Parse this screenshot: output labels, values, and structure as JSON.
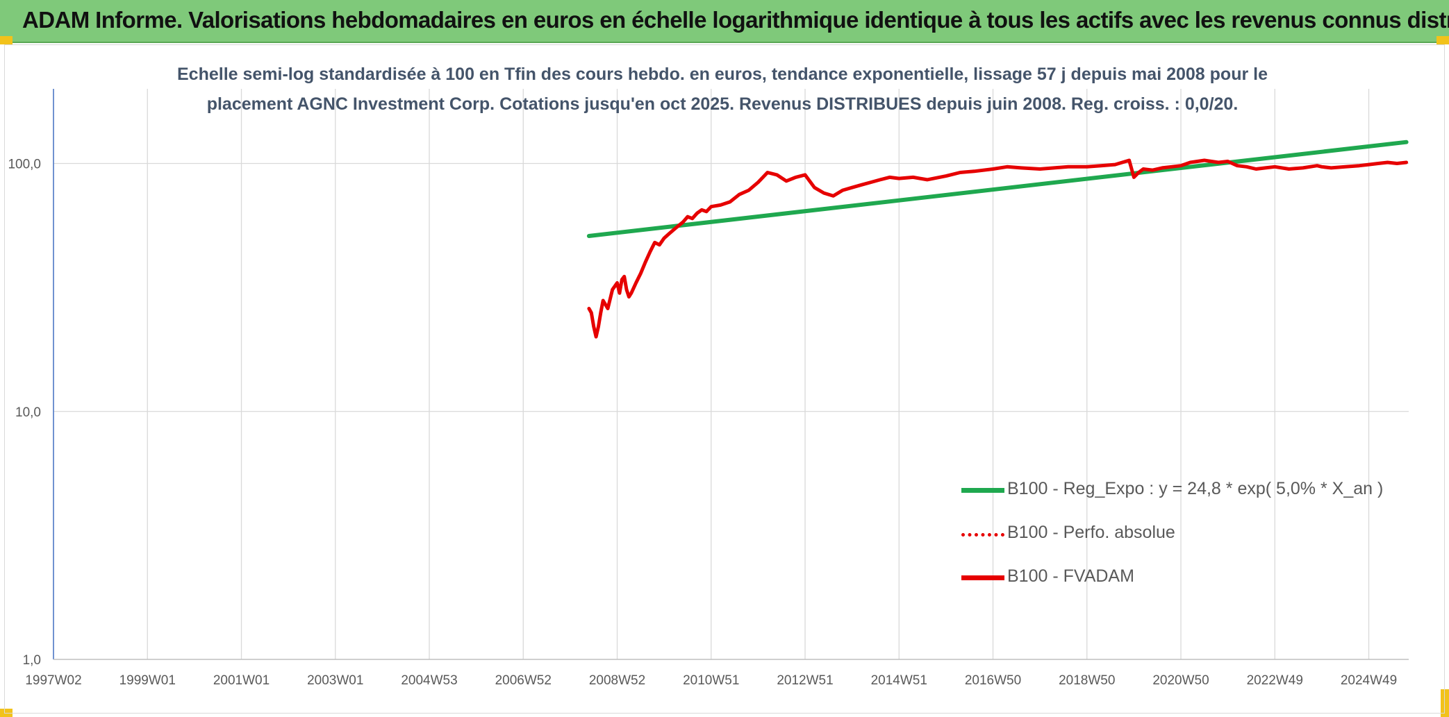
{
  "header": {
    "title": "ADAM Informe. Valorisations hebdomadaires en euros en échelle logarithmique identique à tous les actifs avec les revenus connus distribués"
  },
  "colors": {
    "header_bg": "#7fc97a",
    "regression": "#1fa84f",
    "fvadam": "#e60000",
    "title_text": "#44546a",
    "grid": "#d9d9d9"
  },
  "chart_data": {
    "type": "line",
    "title_lines": [
      "Echelle semi-log standardisée à 100 en Tfin des cours hebdo. en euros, tendance exponentielle, lissage 57 j depuis mai 2008 pour le",
      "placement AGNC Investment Corp. Cotations jusqu'en oct 2025. Revenus DISTRIBUES depuis juin 2008. Reg. croiss. : 0,0/20."
    ],
    "y_scale": "log",
    "ylim": [
      1,
      200
    ],
    "y_ticks": [
      {
        "value": 1,
        "label": "1,0"
      },
      {
        "value": 10,
        "label": "10,0"
      },
      {
        "value": 100,
        "label": "100,0"
      }
    ],
    "xlim": [
      1997.0,
      2025.85
    ],
    "x_ticks": [
      {
        "value": 1997.0,
        "label": "1997W02"
      },
      {
        "value": 1999.0,
        "label": "1999W01"
      },
      {
        "value": 2001.0,
        "label": "2001W01"
      },
      {
        "value": 2003.0,
        "label": "2003W01"
      },
      {
        "value": 2005.0,
        "label": "2004W53"
      },
      {
        "value": 2007.0,
        "label": "2006W52"
      },
      {
        "value": 2009.0,
        "label": "2008W52"
      },
      {
        "value": 2011.0,
        "label": "2010W51"
      },
      {
        "value": 2013.0,
        "label": "2012W51"
      },
      {
        "value": 2015.0,
        "label": "2014W51"
      },
      {
        "value": 2017.0,
        "label": "2016W50"
      },
      {
        "value": 2019.0,
        "label": "2018W50"
      },
      {
        "value": 2021.0,
        "label": "2020W50"
      },
      {
        "value": 2023.0,
        "label": "2022W49"
      },
      {
        "value": 2025.0,
        "label": "2024W49"
      }
    ],
    "series": [
      {
        "name": "B100 - Reg_Expo : y = 24,8 * exp( 5,0% *  X_an )",
        "style": "solid-green",
        "x": [
          2008.4,
          2025.8
        ],
        "y": [
          51,
          122
        ]
      },
      {
        "name": "B100 - Perfo. absolue",
        "style": "dotted-red",
        "x": [],
        "y": []
      },
      {
        "name": "B100 - FVADAM",
        "style": "solid-red",
        "x": [
          2008.4,
          2008.45,
          2008.5,
          2008.55,
          2008.6,
          2008.65,
          2008.7,
          2008.8,
          2008.9,
          2009.0,
          2009.05,
          2009.1,
          2009.15,
          2009.2,
          2009.25,
          2009.3,
          2009.4,
          2009.5,
          2009.6,
          2009.7,
          2009.8,
          2009.9,
          2010.0,
          2010.1,
          2010.2,
          2010.3,
          2010.4,
          2010.5,
          2010.6,
          2010.7,
          2010.8,
          2010.9,
          2011.0,
          2011.2,
          2011.4,
          2011.6,
          2011.8,
          2012.0,
          2012.2,
          2012.4,
          2012.6,
          2012.8,
          2013.0,
          2013.2,
          2013.4,
          2013.6,
          2013.8,
          2014.0,
          2014.2,
          2014.4,
          2014.6,
          2014.8,
          2015.0,
          2015.3,
          2015.6,
          2016.0,
          2016.3,
          2016.6,
          2017.0,
          2017.3,
          2017.6,
          2018.0,
          2018.3,
          2018.6,
          2019.0,
          2019.3,
          2019.6,
          2019.9,
          2020.0,
          2020.1,
          2020.2,
          2020.4,
          2020.6,
          2020.8,
          2021.0,
          2021.2,
          2021.5,
          2021.8,
          2022.0,
          2022.2,
          2022.4,
          2022.6,
          2022.8,
          2023.0,
          2023.3,
          2023.6,
          2023.9,
          2024.0,
          2024.2,
          2024.5,
          2024.8,
          2025.0,
          2025.2,
          2025.4,
          2025.6,
          2025.8
        ],
        "y": [
          26,
          25,
          22,
          20,
          22,
          25,
          28,
          26,
          31,
          33,
          30,
          34,
          35,
          31,
          29,
          30,
          33,
          36,
          40,
          44,
          48,
          47,
          50,
          52,
          54,
          56,
          58,
          61,
          60,
          63,
          65,
          64,
          67,
          68,
          70,
          75,
          78,
          84,
          92,
          90,
          85,
          88,
          90,
          80,
          76,
          74,
          78,
          80,
          82,
          84,
          86,
          88,
          87,
          88,
          86,
          89,
          92,
          93,
          95,
          97,
          96,
          95,
          96,
          97,
          97,
          98,
          99,
          103,
          88,
          92,
          95,
          94,
          96,
          97,
          98,
          101,
          103,
          101,
          102,
          98,
          97,
          95,
          96,
          97,
          95,
          96,
          98,
          97,
          96,
          97,
          98,
          99,
          100,
          101,
          100,
          101
        ]
      }
    ],
    "legend_position": "bottom-right"
  }
}
